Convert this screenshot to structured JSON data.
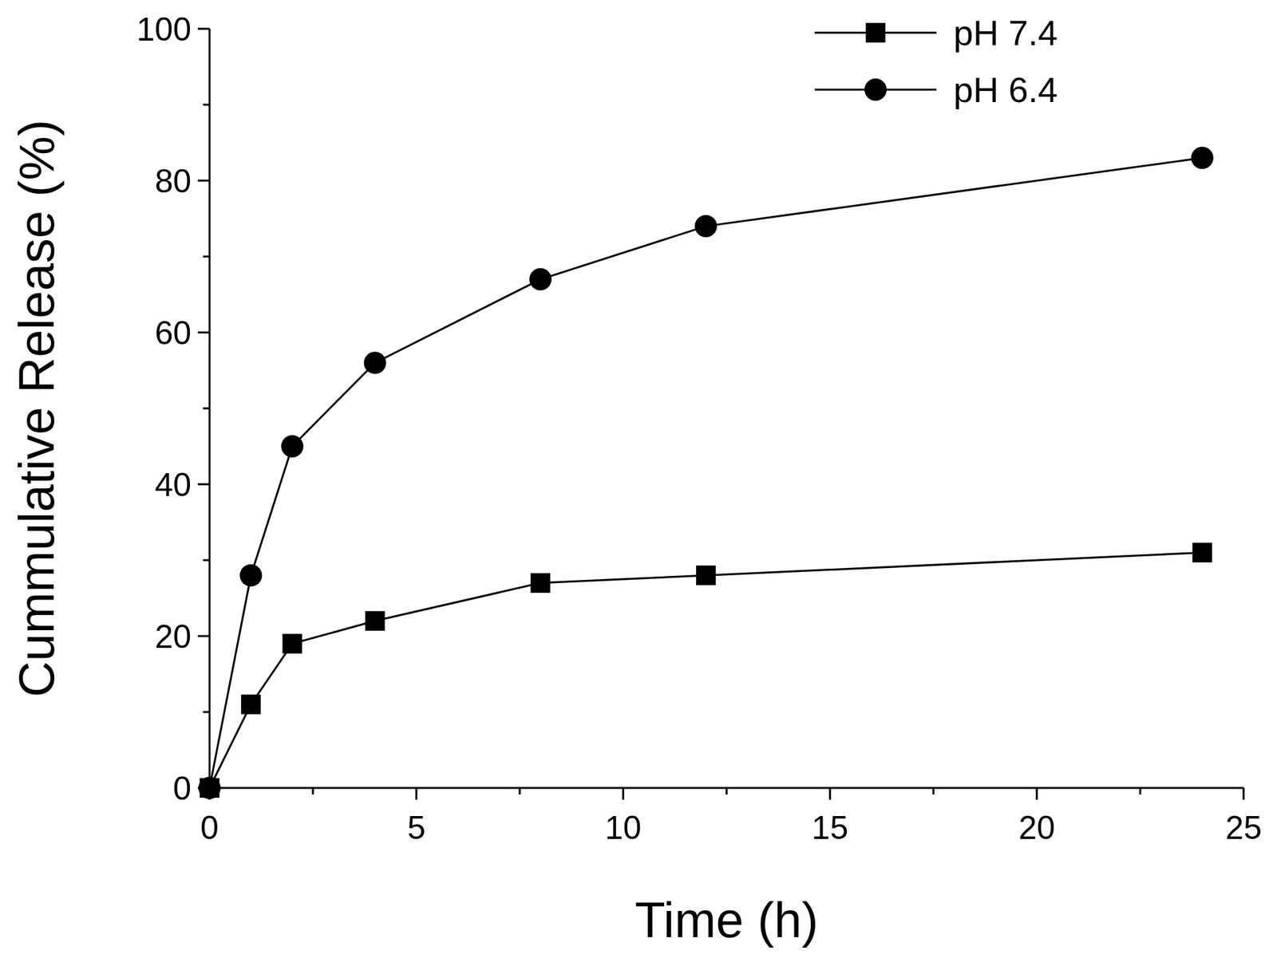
{
  "chart_data": {
    "type": "line",
    "x_label": "Time (h)",
    "y_label": "Cummulative Release (%)",
    "x": [
      0,
      1,
      2,
      4,
      8,
      12,
      24
    ],
    "series": [
      {
        "name": "pH 7.4",
        "color": "#000000",
        "marker": "square",
        "line_style": "solid",
        "values": [
          0,
          11,
          19,
          22,
          27,
          28,
          31
        ]
      },
      {
        "name": "pH 6.4",
        "color": "#000000",
        "marker": "circle",
        "line_style": "solid",
        "values": [
          0,
          28,
          45,
          56,
          67,
          74,
          83
        ]
      }
    ],
    "xlim": [
      0,
      25
    ],
    "xticks": [
      0,
      5,
      10,
      15,
      20,
      25
    ],
    "ylim": [
      0,
      100
    ],
    "yticks": [
      0,
      20,
      40,
      60,
      80,
      100
    ],
    "grid": false,
    "legend": "upper right"
  }
}
